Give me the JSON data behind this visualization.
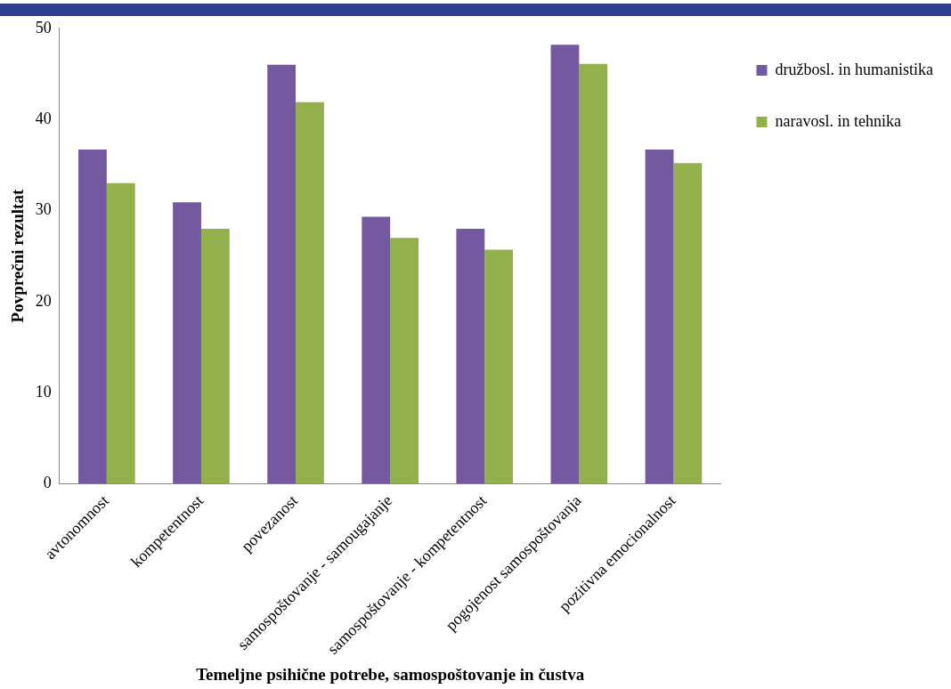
{
  "chart_data": {
    "type": "bar",
    "xlabel": "Temeljne psihične potrebe, samospoštovanje in čustva",
    "ylabel": "Povprečni rezultat",
    "categories": [
      "avtonomnost",
      "kompetentnost",
      "povezanost",
      "samospoštovanje - samougajanje",
      "samospoštovanje - kompetentnost",
      "pogojenost samospoštovanja",
      "pozitivna emocionalnost"
    ],
    "series": [
      {
        "name": "družbosl. in humanistika",
        "color": "#7459a0",
        "values": [
          36.7,
          30.9,
          46.0,
          29.3,
          28.0,
          48.2,
          36.7
        ]
      },
      {
        "name": "naravosl. in tehnika",
        "color": "#92b04c",
        "values": [
          33.0,
          28.0,
          41.9,
          27.0,
          25.7,
          46.1,
          35.2
        ]
      }
    ],
    "ylim": [
      0,
      50
    ],
    "yticks": [
      0,
      10,
      20,
      30,
      40,
      50
    ],
    "grid": false,
    "legend": "top right"
  }
}
